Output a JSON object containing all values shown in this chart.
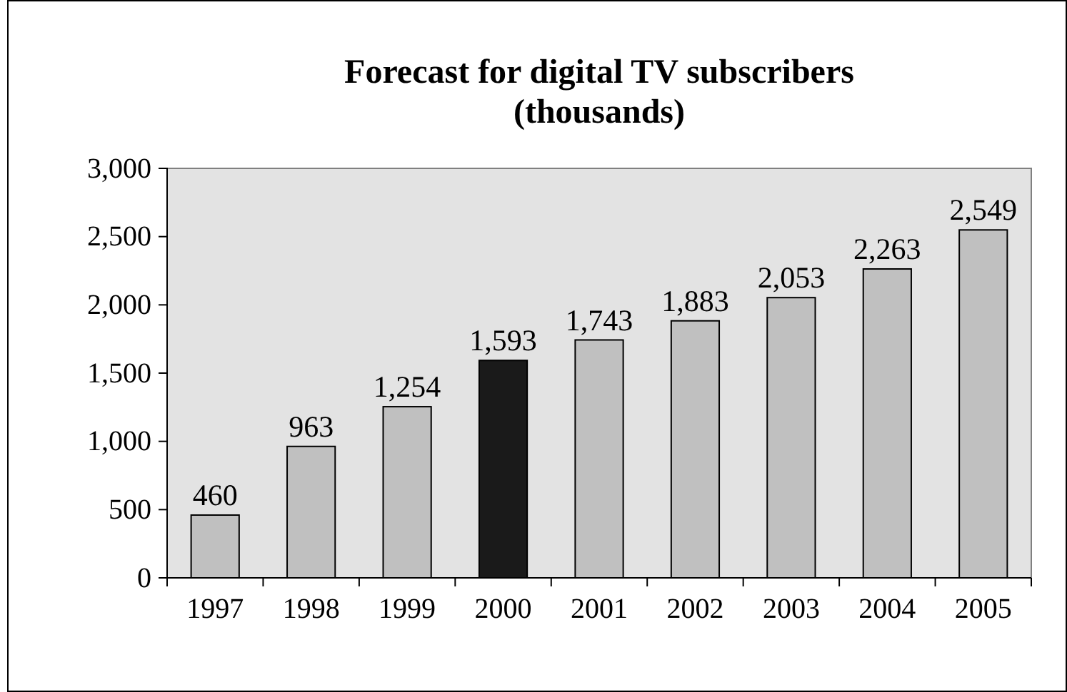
{
  "chart_data": {
    "type": "bar",
    "title": "Forecast for digital TV subscribers\n(thousands)",
    "categories": [
      "1997",
      "1998",
      "1999",
      "2000",
      "2001",
      "2002",
      "2003",
      "2004",
      "2005"
    ],
    "values": [
      460,
      963,
      1254,
      1593,
      1743,
      1883,
      2053,
      2263,
      2549
    ],
    "colors": [
      "#c0c0c0",
      "#c0c0c0",
      "#c0c0c0",
      "#1a1a1a",
      "#c0c0c0",
      "#c0c0c0",
      "#c0c0c0",
      "#c0c0c0",
      "#c0c0c0"
    ],
    "ylim": [
      0,
      3000
    ],
    "yticks": [
      {
        "value": 0,
        "label": "0"
      },
      {
        "value": 500,
        "label": "500"
      },
      {
        "value": 1000,
        "label": "1,000"
      },
      {
        "value": 1500,
        "label": "1,500"
      },
      {
        "value": 2000,
        "label": "2,000"
      },
      {
        "value": 2500,
        "label": "2,500"
      },
      {
        "value": 3000,
        "label": "3,000"
      }
    ],
    "value_labels": [
      "460",
      "963",
      "1,254",
      "1,593",
      "1,743",
      "1,883",
      "2,053",
      "2,263",
      "2,549"
    ]
  }
}
